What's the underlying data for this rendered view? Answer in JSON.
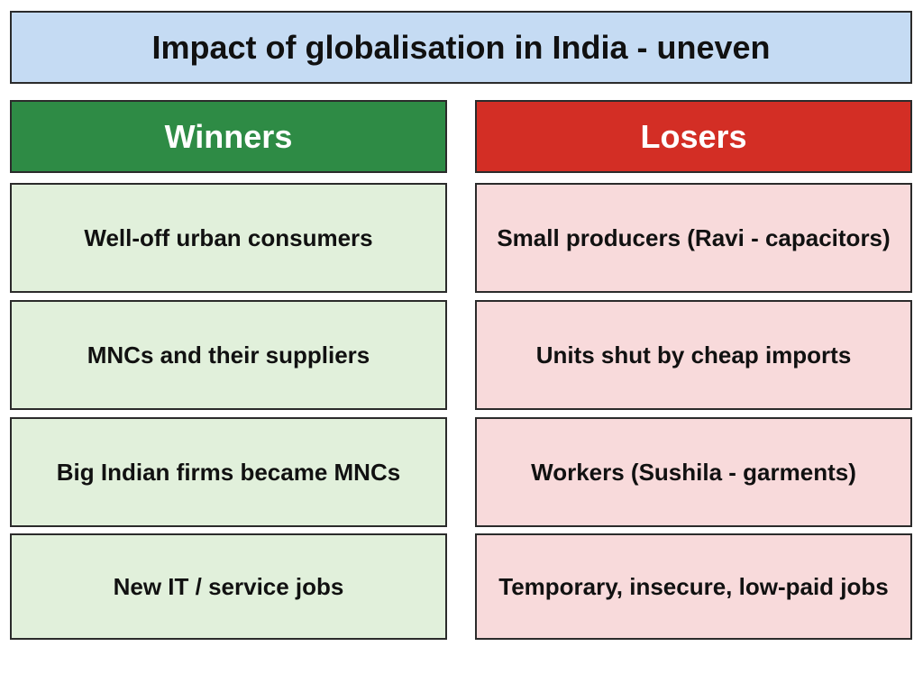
{
  "title": "Impact of globalisation in India - uneven",
  "winners": {
    "header": "Winners",
    "items": [
      "Well-off urban consumers",
      "MNCs and their suppliers",
      "Big Indian firms became MNCs",
      "New IT / service jobs"
    ]
  },
  "losers": {
    "header": "Losers",
    "items": [
      "Small producers (Ravi - capacitors)",
      "Units shut by cheap imports",
      "Workers (Sushila - garments)",
      "Temporary, insecure, low-paid jobs"
    ]
  },
  "colors": {
    "title_bg": "#c5dbf3",
    "winners_header": "#2e8b45",
    "losers_header": "#d32e25",
    "winners_item": "#e1f0db",
    "losers_item": "#f8dadb"
  }
}
